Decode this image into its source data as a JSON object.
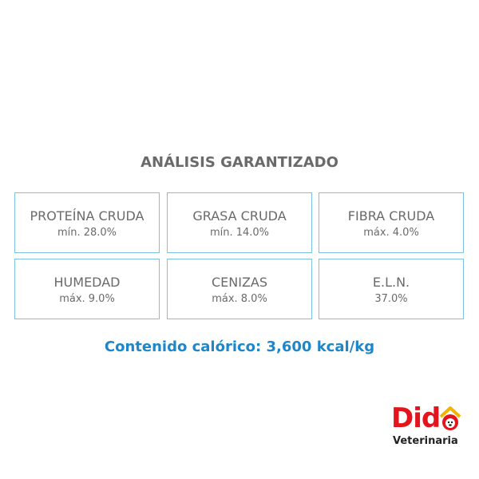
{
  "title": "ANÁLISIS GARANTIZADO",
  "items": [
    {
      "name": "PROTEÍNA CRUDA",
      "value": "mín. 28.0%"
    },
    {
      "name": "GRASA CRUDA",
      "value": "mín. 14.0%"
    },
    {
      "name": "FIBRA CRUDA",
      "value": "máx. 4.0%"
    },
    {
      "name": "HUMEDAD",
      "value": "máx. 9.0%"
    },
    {
      "name": "CENIZAS",
      "value": "máx. 8.0%"
    },
    {
      "name": "E.L.N.",
      "value": "37.0%"
    }
  ],
  "caloric": "Contenido calórico: 3,600 kcal/kg",
  "logo": {
    "brand": "Did",
    "subtitle": "Veterinaria"
  }
}
